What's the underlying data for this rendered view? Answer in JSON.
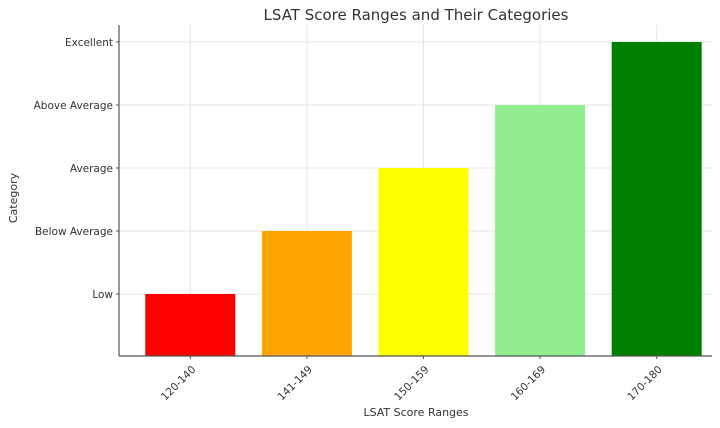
{
  "chart_data": {
    "type": "bar",
    "title": "LSAT Score Ranges and Their Categories",
    "xlabel": "LSAT Score Ranges",
    "ylabel": "Category",
    "categories": [
      "120-140",
      "141-149",
      "150-159",
      "160-169",
      "170-180"
    ],
    "values": [
      1,
      2,
      3,
      4,
      5
    ],
    "value_labels": [
      "Low",
      "Below Average",
      "Average",
      "Above Average",
      "Excellent"
    ],
    "y_tick_labels": [
      "Low",
      "Below Average",
      "Average",
      "Above Average",
      "Excellent"
    ],
    "colors": [
      "#ff0000",
      "#ffa500",
      "#ffff00",
      "#90ee90",
      "#008000"
    ],
    "ylim": [
      0,
      5.3
    ],
    "grid": true,
    "legend": null,
    "x_tick_rotation": 45
  }
}
